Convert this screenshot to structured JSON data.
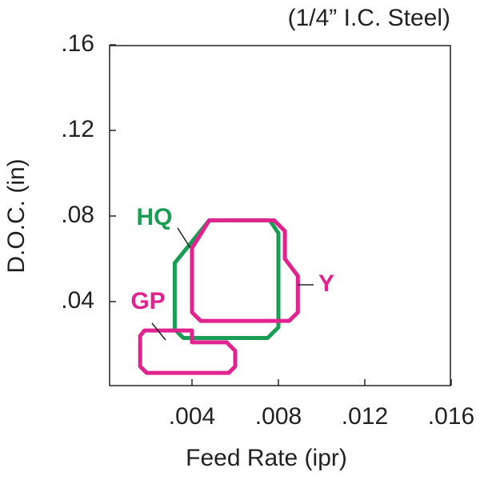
{
  "chart_data": {
    "type": "region",
    "title": "(1/4” I.C. Steel)",
    "xlabel": "Feed Rate (ipr)",
    "ylabel": "D.O.C. (in)",
    "xlim": [
      0,
      0.016
    ],
    "ylim": [
      0,
      0.16
    ],
    "xticks": [
      {
        "value": 0.004,
        "label": ".004"
      },
      {
        "value": 0.008,
        "label": ".008"
      },
      {
        "value": 0.012,
        "label": ".012"
      },
      {
        "value": 0.016,
        "label": ".016"
      }
    ],
    "yticks": [
      {
        "value": 0.04,
        "label": ".04"
      },
      {
        "value": 0.08,
        "label": ".08"
      },
      {
        "value": 0.12,
        "label": ".12"
      },
      {
        "value": 0.16,
        "label": ".16"
      }
    ],
    "series": [
      {
        "name": "HQ",
        "color": "#1a9e55",
        "x": [
          0.0032,
          0.0048,
          0.0076,
          0.008,
          0.008,
          0.0075,
          0.0036,
          0.0032
        ],
        "y": [
          0.058,
          0.078,
          0.078,
          0.072,
          0.028,
          0.023,
          0.023,
          0.027
        ]
      },
      {
        "name": "Y",
        "color": "#e0238f",
        "x": [
          0.004,
          0.0048,
          0.0078,
          0.0083,
          0.0083,
          0.0089,
          0.0089,
          0.0085,
          0.0044,
          0.004
        ],
        "y": [
          0.065,
          0.078,
          0.078,
          0.073,
          0.06,
          0.052,
          0.035,
          0.031,
          0.031,
          0.035
        ]
      },
      {
        "name": "GP",
        "color": "#e0238f",
        "x": [
          0.0016,
          0.0018,
          0.004,
          0.004,
          0.0056,
          0.006,
          0.006,
          0.0057,
          0.0019,
          0.0016
        ],
        "y": [
          0.024,
          0.0265,
          0.0265,
          0.021,
          0.021,
          0.017,
          0.0097,
          0.0067,
          0.0067,
          0.0097
        ]
      }
    ]
  }
}
